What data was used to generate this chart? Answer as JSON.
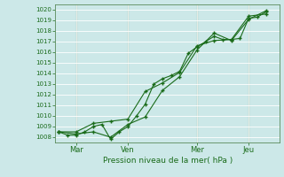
{
  "xlabel": "Pression niveau de la mer( hPa )",
  "background_color": "#cce8e8",
  "grid_color": "#ffffff",
  "line_color": "#1a6b1a",
  "vline_color": "#5a8a5a",
  "ylim": [
    1007.5,
    1020.5
  ],
  "yticks": [
    1008,
    1009,
    1010,
    1011,
    1012,
    1013,
    1014,
    1015,
    1016,
    1017,
    1018,
    1019,
    1020
  ],
  "x_tick_labels": [
    "Mar",
    "Ven",
    "Mer",
    "Jeu"
  ],
  "x_tick_positions": [
    1,
    4,
    8,
    11
  ],
  "xlim": [
    -0.2,
    12.8
  ],
  "series1_x": [
    0,
    0.5,
    1,
    1.5,
    2,
    2.5,
    3,
    3.5,
    4,
    4.5,
    5,
    5.5,
    6,
    6.5,
    7,
    7.5,
    8,
    8.5,
    9,
    9.5,
    10,
    10.5,
    11,
    11.5,
    12
  ],
  "series1_y": [
    1008.5,
    1008.2,
    1008.2,
    1008.5,
    1009.0,
    1009.2,
    1007.8,
    1008.5,
    1009.0,
    1010.0,
    1011.1,
    1013.0,
    1013.5,
    1013.8,
    1014.2,
    1015.9,
    1016.5,
    1017.0,
    1017.5,
    1017.2,
    1017.2,
    1017.3,
    1019.2,
    1019.3,
    1019.8
  ],
  "series2_x": [
    0,
    1,
    2,
    3,
    4,
    5,
    6,
    7,
    8,
    9,
    10,
    11,
    12
  ],
  "series2_y": [
    1008.5,
    1008.5,
    1009.3,
    1009.5,
    1009.7,
    1012.3,
    1013.1,
    1014.1,
    1016.6,
    1017.1,
    1017.2,
    1019.4,
    1019.6
  ],
  "series3_x": [
    0,
    1,
    2,
    3,
    4,
    5,
    6,
    7,
    8,
    9,
    10,
    11,
    12
  ],
  "series3_y": [
    1008.5,
    1008.3,
    1008.5,
    1008.0,
    1009.2,
    1009.9,
    1012.4,
    1013.7,
    1016.2,
    1017.8,
    1017.1,
    1019.1,
    1019.9
  ]
}
